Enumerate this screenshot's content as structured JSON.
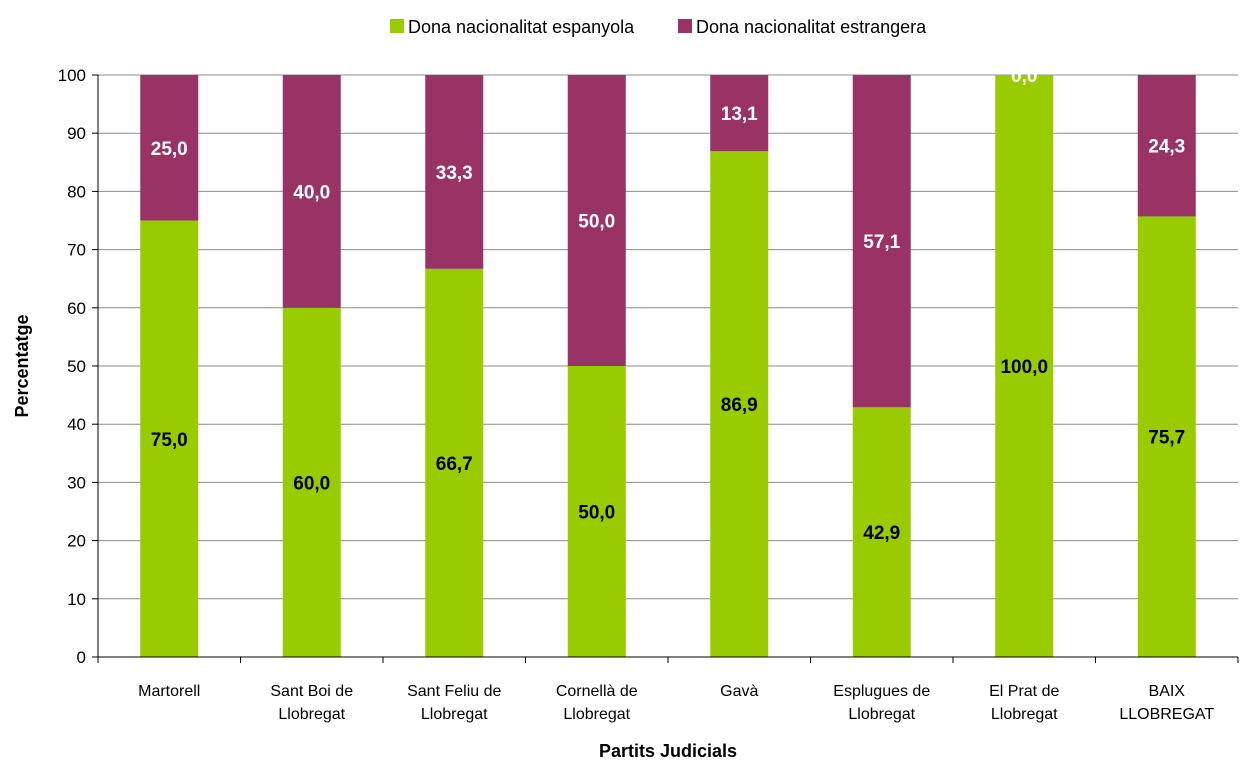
{
  "chart_data": {
    "type": "bar",
    "stacked": true,
    "title": "",
    "xlabel": "Partits Judicials",
    "ylabel": "Percentatge",
    "ylim": [
      0,
      100
    ],
    "yticks": [
      "0",
      "10",
      "20",
      "30",
      "40",
      "50",
      "60",
      "70",
      "80",
      "90",
      "100"
    ],
    "grid": true,
    "legend_position": "top-center",
    "categories": [
      [
        "Martorell"
      ],
      [
        "Sant Boi de",
        "Llobregat"
      ],
      [
        "Sant Feliu de",
        "Llobregat"
      ],
      [
        "Cornellà de",
        "Llobregat"
      ],
      [
        "Gavà"
      ],
      [
        "Esplugues de",
        "Llobregat"
      ],
      [
        "El Prat de",
        "Llobregat"
      ],
      [
        "BAIX",
        "LLOBREGAT"
      ]
    ],
    "series": [
      {
        "name": "Dona nacionalitat espanyola",
        "color": "#99cc00",
        "label_color": "#000000",
        "values": [
          75.0,
          60.0,
          66.7,
          50.0,
          86.9,
          42.9,
          100.0,
          75.7
        ],
        "labels": [
          "75,0",
          "60,0",
          "66,7",
          "50,0",
          "86,9",
          "42,9",
          "100,0",
          "75,7"
        ]
      },
      {
        "name": "Dona nacionalitat estrangera",
        "color": "#993366",
        "label_color": "#ffffff",
        "values": [
          25.0,
          40.0,
          33.3,
          50.0,
          13.1,
          57.1,
          0.0,
          24.3
        ],
        "labels": [
          "25,0",
          "40,0",
          "33,3",
          "50,0",
          "13,1",
          "57,1",
          "0,0",
          "24,3"
        ]
      }
    ]
  }
}
